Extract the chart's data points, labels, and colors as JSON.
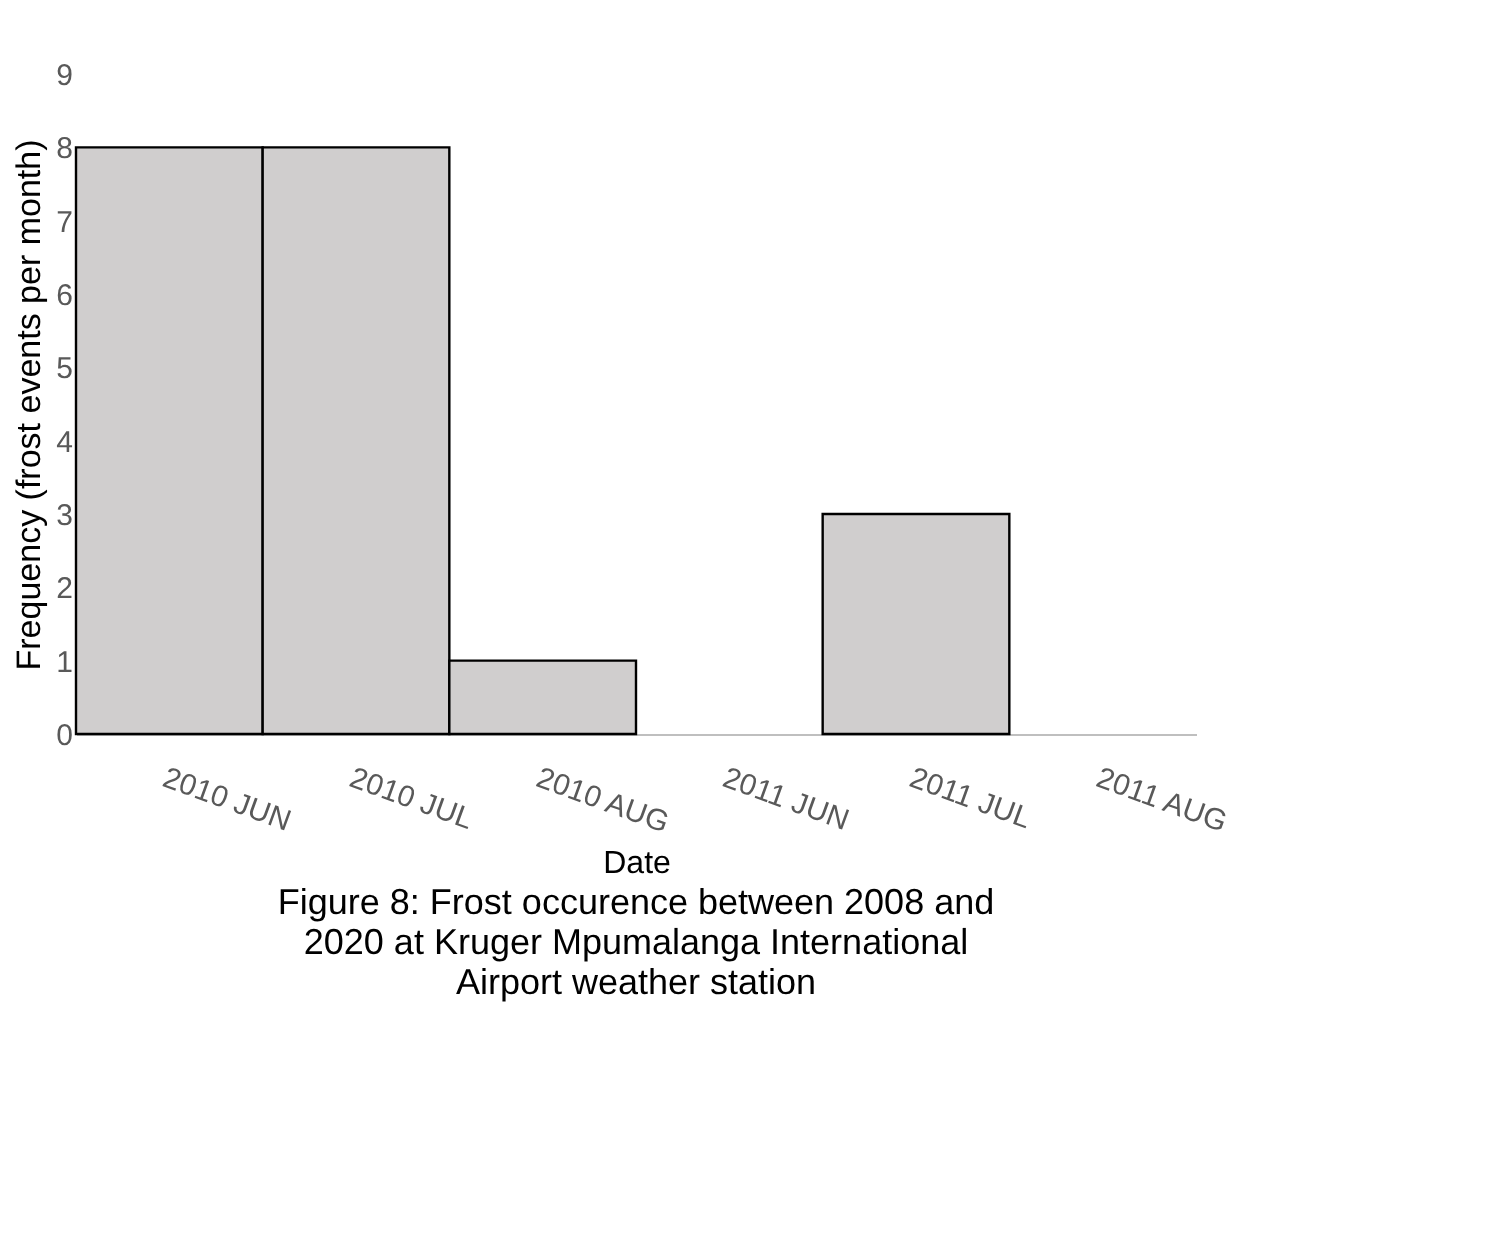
{
  "chart_data": {
    "type": "bar",
    "title": "Figure 8: Frost occurence between 2008 and 2020 at Kruger Mpumalanga International Airport weather station",
    "xlabel": "Date",
    "ylabel": "Frequency (frost events per month)",
    "categories": [
      "2010 JUN",
      "2010 JUL",
      "2010 AUG",
      "2011 JUN",
      "2011 JUL",
      "2011 AUG"
    ],
    "values": [
      8,
      8,
      1,
      0,
      3,
      0
    ],
    "color": "#d0cece",
    "ylim": [
      0,
      9
    ],
    "yticks": [
      0,
      1,
      2,
      3,
      4,
      5,
      6,
      7,
      8,
      9
    ],
    "grid": false
  }
}
